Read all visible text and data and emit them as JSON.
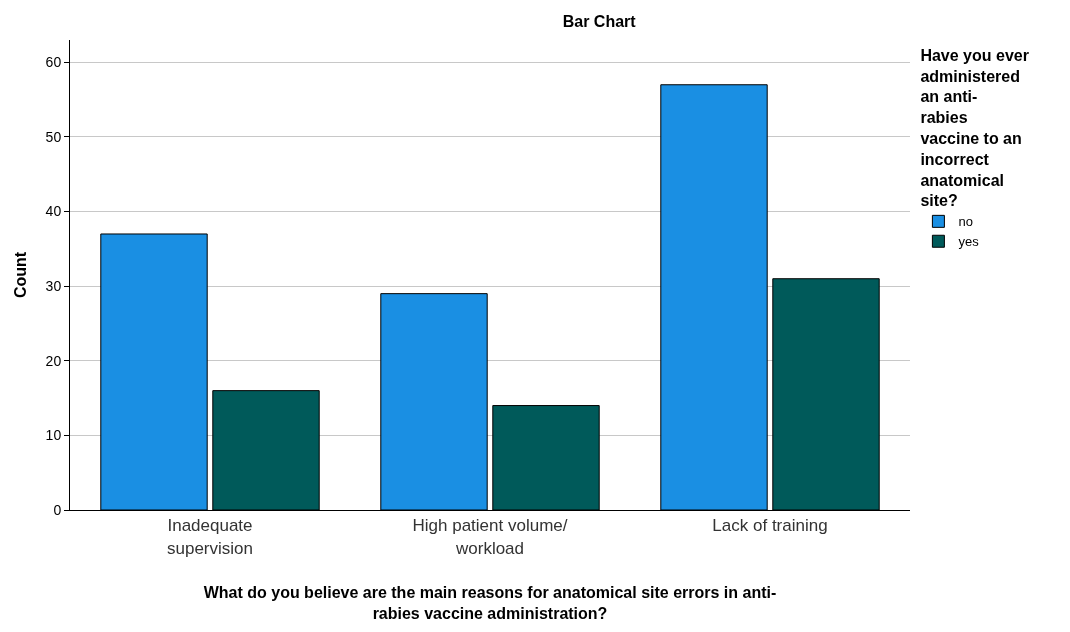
{
  "chart_data": {
    "type": "bar",
    "title": "Bar Chart",
    "xlabel": "What do you believe are the main reasons for anatomical site errors in anti-rabies vaccine administration?",
    "ylabel": "Count",
    "legend_title": "Have you ever administered an anti-rabies vaccine to an incorrect anatomical site?",
    "categories": [
      "Inadequate supervision",
      "High patient volume/ workload",
      "Lack of training"
    ],
    "series": [
      {
        "name": "no",
        "color": "#1a8fe3",
        "values": [
          37,
          29,
          57
        ]
      },
      {
        "name": "yes",
        "color": "#005a5a",
        "values": [
          16,
          14,
          31
        ]
      }
    ],
    "ylim": [
      0,
      63
    ],
    "yticks": [
      0,
      10,
      20,
      30,
      40,
      50,
      60
    ],
    "grid": "y",
    "legend": "top right"
  }
}
